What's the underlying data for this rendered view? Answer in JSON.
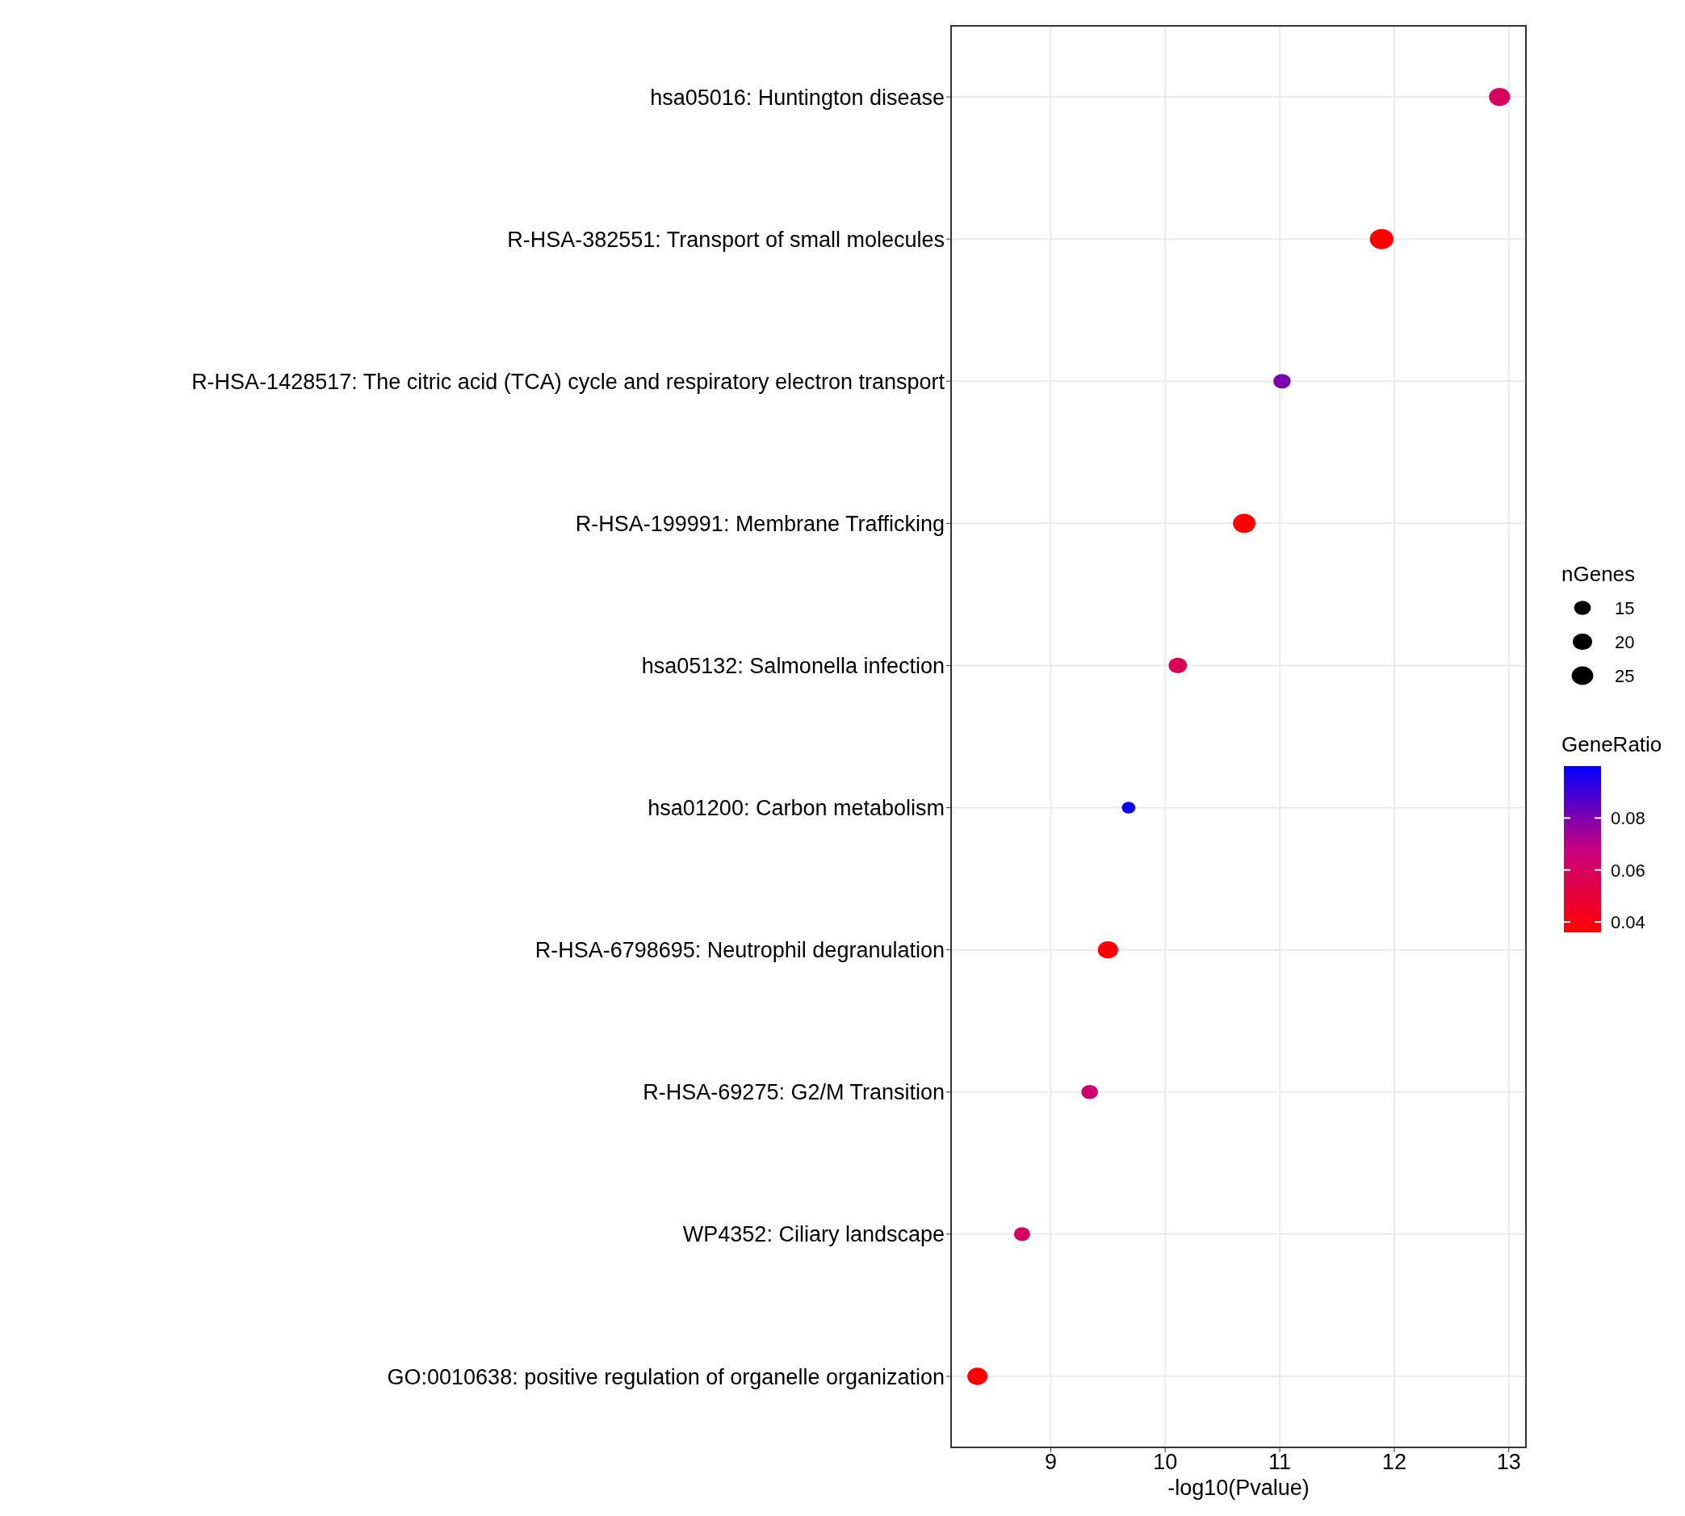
{
  "chart_data": {
    "type": "bubble",
    "xlabel": "-log10(Pvalue)",
    "legend_title": "nGenes",
    "clabel": "GeneRatio",
    "categories": [
      "hsa05016: Huntington disease",
      "R-HSA-382551: Transport of small molecules",
      "R-HSA-1428517: The citric acid (TCA) cycle and respiratory electron transport",
      "R-HSA-199991: Membrane Trafficking",
      "hsa05132: Salmonella infection",
      "hsa01200: Carbon metabolism",
      "R-HSA-6798695: Neutrophil degranulation",
      "R-HSA-69275: G2/M Transition",
      "WP4352: Ciliary landscape",
      "GO:0010638: positive regulation of organelle organization"
    ],
    "values": [
      12.92,
      11.89,
      11.02,
      10.69,
      10.11,
      9.68,
      9.5,
      9.34,
      8.75,
      8.36
    ],
    "sizes": [
      24,
      30,
      16,
      27,
      18,
      10,
      22,
      15,
      14,
      22
    ],
    "size_legend": [
      15,
      20,
      25
    ],
    "cvalues": [
      0.06,
      0.036,
      0.08,
      0.037,
      0.058,
      0.099,
      0.038,
      0.065,
      0.06,
      0.037
    ],
    "orientation": "horizontal",
    "clim": [
      0.036,
      0.1
    ],
    "cticks": [
      0.04,
      0.06,
      0.08
    ],
    "xlim": [
      8.13,
      13.15
    ],
    "xticks": [
      9,
      10,
      11,
      12,
      13
    ],
    "grid": true
  }
}
